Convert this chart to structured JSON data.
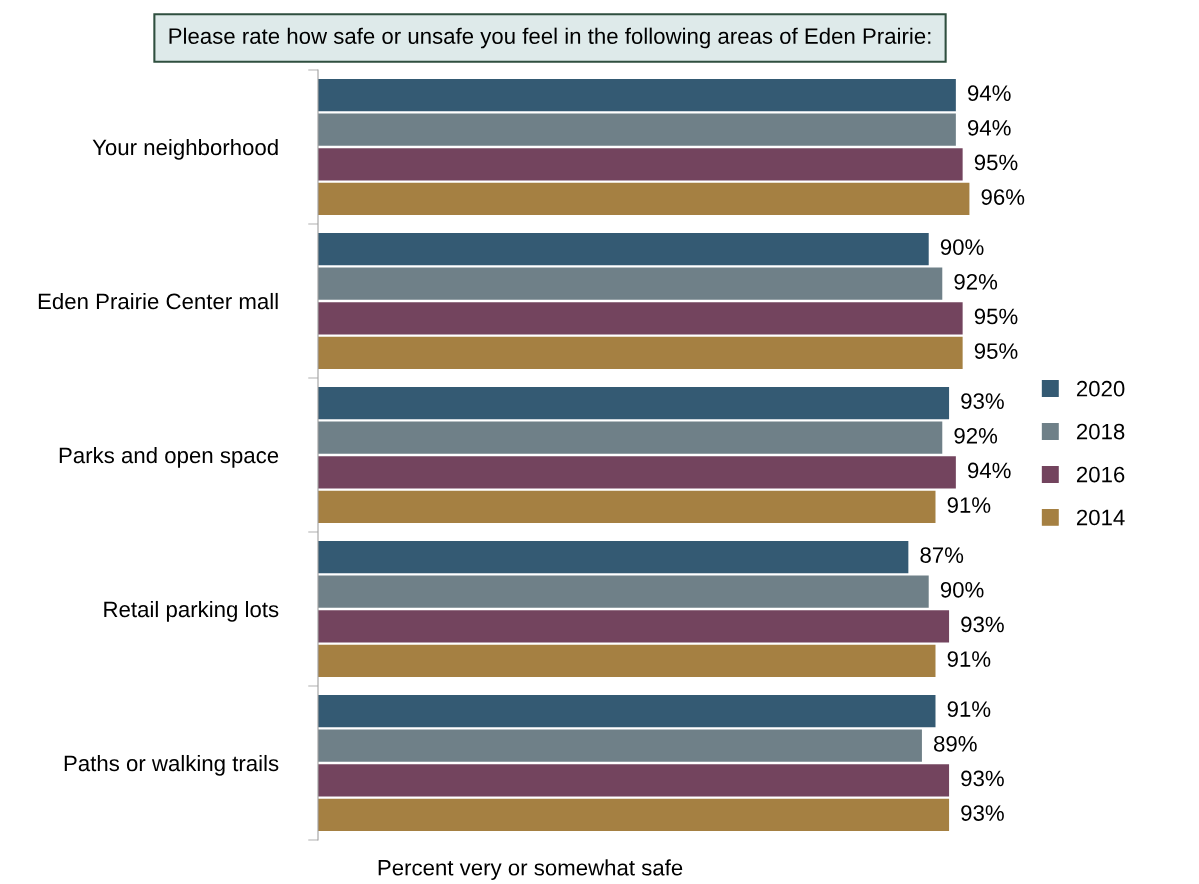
{
  "chart_data": {
    "type": "bar",
    "orientation": "horizontal",
    "title": "Please rate how safe or unsafe you feel in the following areas of Eden Prairie:",
    "xlabel": "Percent very or somewhat safe",
    "categories": [
      "Your neighborhood",
      "Eden Prairie Center mall",
      "Parks and open space",
      "Retail parking lots",
      "Paths or walking trails"
    ],
    "series": [
      {
        "name": "2020",
        "color": "#345a73",
        "values": [
          94,
          90,
          93,
          87,
          91
        ],
        "value_labels": [
          "94%",
          "90%",
          "93%",
          "87%",
          "91%"
        ]
      },
      {
        "name": "2018",
        "color": "#6f8088",
        "values": [
          94,
          92,
          92,
          90,
          89
        ],
        "value_labels": [
          "94%",
          "92%",
          "92%",
          "90%",
          "89%"
        ]
      },
      {
        "name": "2016",
        "color": "#73445e",
        "values": [
          95,
          95,
          94,
          93,
          93
        ],
        "value_labels": [
          "95%",
          "95%",
          "94%",
          "93%",
          "93%"
        ]
      },
      {
        "name": "2014",
        "color": "#a58042",
        "values": [
          96,
          95,
          91,
          91,
          93
        ],
        "value_labels": [
          "96%",
          "95%",
          "91%",
          "91%",
          "93%"
        ]
      }
    ],
    "legend": "right",
    "tick_labels": "y"
  }
}
